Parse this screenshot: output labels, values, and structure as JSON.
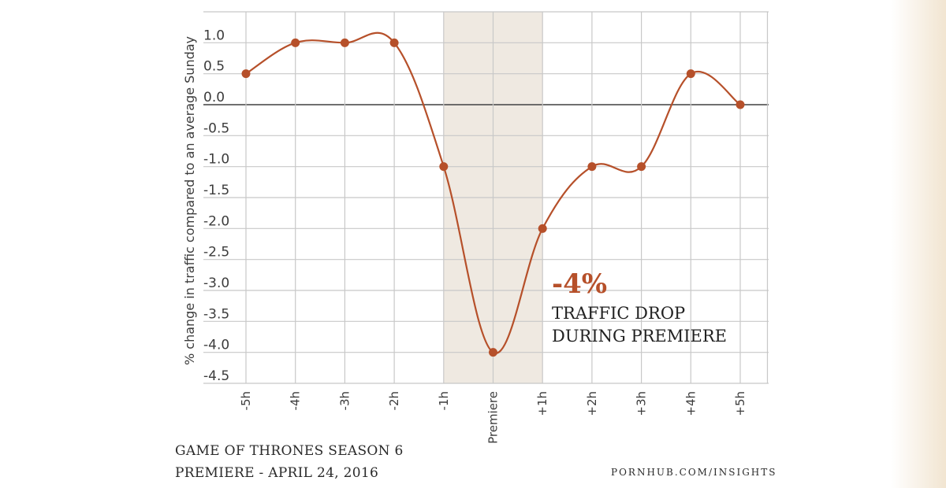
{
  "chart_data": {
    "type": "line",
    "categories": [
      "-5h",
      "-4h",
      "-3h",
      "-2h",
      "-1h",
      "Premiere",
      "+1h",
      "+2h",
      "+3h",
      "+4h",
      "+5h"
    ],
    "series": [
      {
        "values": [
          0.5,
          1.0,
          1.0,
          1.0,
          -1.0,
          -4.0,
          -2.0,
          -1.0,
          -1.0,
          0.5,
          0.0
        ]
      }
    ],
    "ylabel": "% change in traffic compared to an average Sunday",
    "xlabel": "",
    "ylim": [
      -4.5,
      1.5
    ],
    "yticks": [
      "1.0",
      "0.5",
      "0.0",
      "-0.5",
      "-1.0",
      "-1.5",
      "-2.0",
      "-2.5",
      "-3.0",
      "-3.5",
      "-4.0",
      "-4.5"
    ],
    "highlight_range": [
      "-1h",
      "+1h"
    ],
    "grid": true,
    "annotation": {
      "value": "-4%",
      "line1": "TRAFFIC DROP",
      "line2": "DURING PREMIERE"
    },
    "colors": {
      "line": "#b6502a",
      "highlight": "#efe9e1",
      "grid": "#c8c8c8",
      "zero_line": "#444444"
    }
  },
  "caption": {
    "line1": "GAME OF THRONES SEASON 6",
    "line2": "PREMIERE - APRIL 24, 2016"
  },
  "source": "PORNHUB.COM/INSIGHTS"
}
